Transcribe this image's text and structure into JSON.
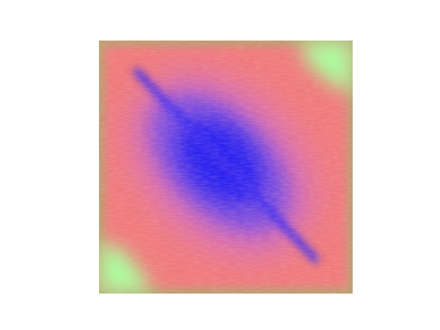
{
  "image": {
    "subject": "blurred-square-heatmap-texture",
    "colors": {
      "background": "#ffffff",
      "outer_edge": "#b8a070",
      "coral": "#f07a7a",
      "pink": "#e87aa0",
      "magenta": "#c060c8",
      "violet": "#7a50e0",
      "blue": "#2a22f0",
      "corner_green": "#a8ff9a"
    }
  }
}
